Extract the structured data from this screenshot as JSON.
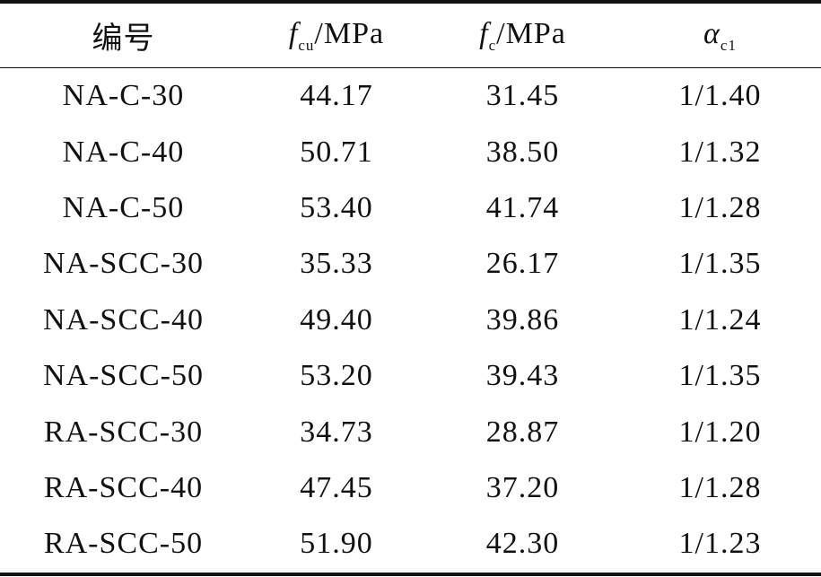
{
  "table": {
    "header": [
      {
        "text": "编号"
      },
      {
        "symbol": "f",
        "sub": "cu",
        "unit": "/MPa"
      },
      {
        "symbol": "f",
        "sub": "c",
        "unit": "/MPa"
      },
      {
        "symbol": "α",
        "sub": "c1"
      }
    ],
    "rows": [
      [
        "NA-C-30",
        "44.17",
        "31.45",
        "1/1.40"
      ],
      [
        "NA-C-40",
        "50.71",
        "38.50",
        "1/1.32"
      ],
      [
        "NA-C-50",
        "53.40",
        "41.74",
        "1/1.28"
      ],
      [
        "NA-SCC-30",
        "35.33",
        "26.17",
        "1/1.35"
      ],
      [
        "NA-SCC-40",
        "49.40",
        "39.86",
        "1/1.24"
      ],
      [
        "NA-SCC-50",
        "53.20",
        "39.43",
        "1/1.35"
      ],
      [
        "RA-SCC-30",
        "34.73",
        "28.87",
        "1/1.20"
      ],
      [
        "RA-SCC-40",
        "47.45",
        "37.20",
        "1/1.28"
      ],
      [
        "RA-SCC-50",
        "51.90",
        "42.30",
        "1/1.23"
      ]
    ]
  }
}
